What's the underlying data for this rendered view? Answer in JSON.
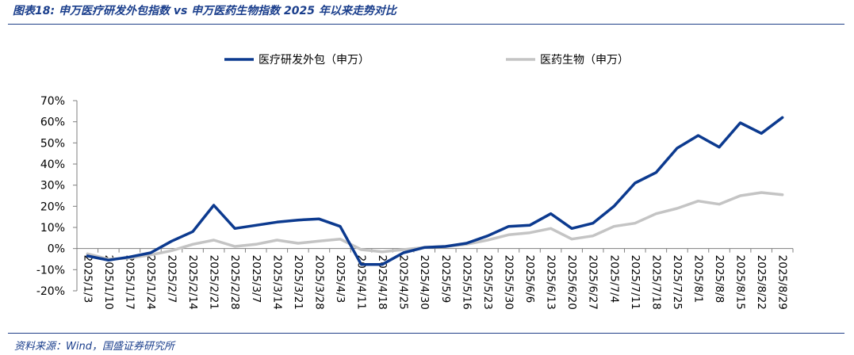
{
  "header": {
    "title": "图表18: 申万医疗研发外包指数 vs 申万医药生物指数 2025 年以来走势对比"
  },
  "footer": {
    "source": "资料来源：Wind，国盛证券研究所"
  },
  "colors": {
    "accent": "#1f3f88",
    "series_primary": "#0c3a8f",
    "series_secondary": "#c4c4c4",
    "axis": "#7f7f7f"
  },
  "chart_data": {
    "type": "line",
    "title": "",
    "xlabel": "",
    "ylabel": "",
    "ylim": [
      -20,
      70
    ],
    "yticks": [
      -20,
      -10,
      0,
      10,
      20,
      30,
      40,
      50,
      60,
      70
    ],
    "yticklabels": [
      "-20%",
      "-10%",
      "0%",
      "10%",
      "20%",
      "30%",
      "40%",
      "50%",
      "60%",
      "70%"
    ],
    "grid": false,
    "legend": "top-center",
    "categories": [
      "2025/1/3",
      "2025/1/10",
      "2025/1/17",
      "2025/1/24",
      "2025/2/7",
      "2025/2/14",
      "2025/2/21",
      "2025/2/28",
      "2025/3/7",
      "2025/3/14",
      "2025/3/21",
      "2025/3/28",
      "2025/4/3",
      "2025/4/11",
      "2025/4/18",
      "2025/4/25",
      "2025/4/30",
      "2025/5/9",
      "2025/5/16",
      "2025/5/23",
      "2025/5/30",
      "2025/6/6",
      "2025/6/13",
      "2025/6/20",
      "2025/6/27",
      "2025/7/4",
      "2025/7/11",
      "2025/7/18",
      "2025/7/25",
      "2025/8/1",
      "2025/8/8",
      "2025/8/15",
      "2025/8/22",
      "2025/8/29"
    ],
    "series": [
      {
        "name": "医疗研发外包（申万）",
        "values": [
          -3.5,
          -5.5,
          -4.0,
          -2.0,
          3.5,
          8.0,
          20.5,
          9.5,
          11.0,
          12.5,
          13.5,
          14.0,
          10.5,
          -7.5,
          -7.5,
          -2.0,
          0.5,
          1.0,
          2.5,
          6.0,
          10.5,
          11.0,
          16.5,
          9.5,
          12.0,
          20.0,
          31.0,
          36.0,
          47.5,
          53.5,
          48.0,
          59.5,
          54.5,
          62.0
        ],
        "color": "#0c3a8f"
      },
      {
        "name": "医药生物（申万）",
        "values": [
          -2.5,
          -5.0,
          -4.5,
          -3.0,
          -1.0,
          2.0,
          4.0,
          1.0,
          2.0,
          4.0,
          2.5,
          3.5,
          4.5,
          -0.5,
          -1.5,
          -0.5,
          0.5,
          1.0,
          2.0,
          4.0,
          6.5,
          7.5,
          9.5,
          4.5,
          6.0,
          10.5,
          12.0,
          16.5,
          19.0,
          22.5,
          21.0,
          25.0,
          26.5,
          25.5
        ],
        "color": "#c4c4c4"
      }
    ]
  }
}
